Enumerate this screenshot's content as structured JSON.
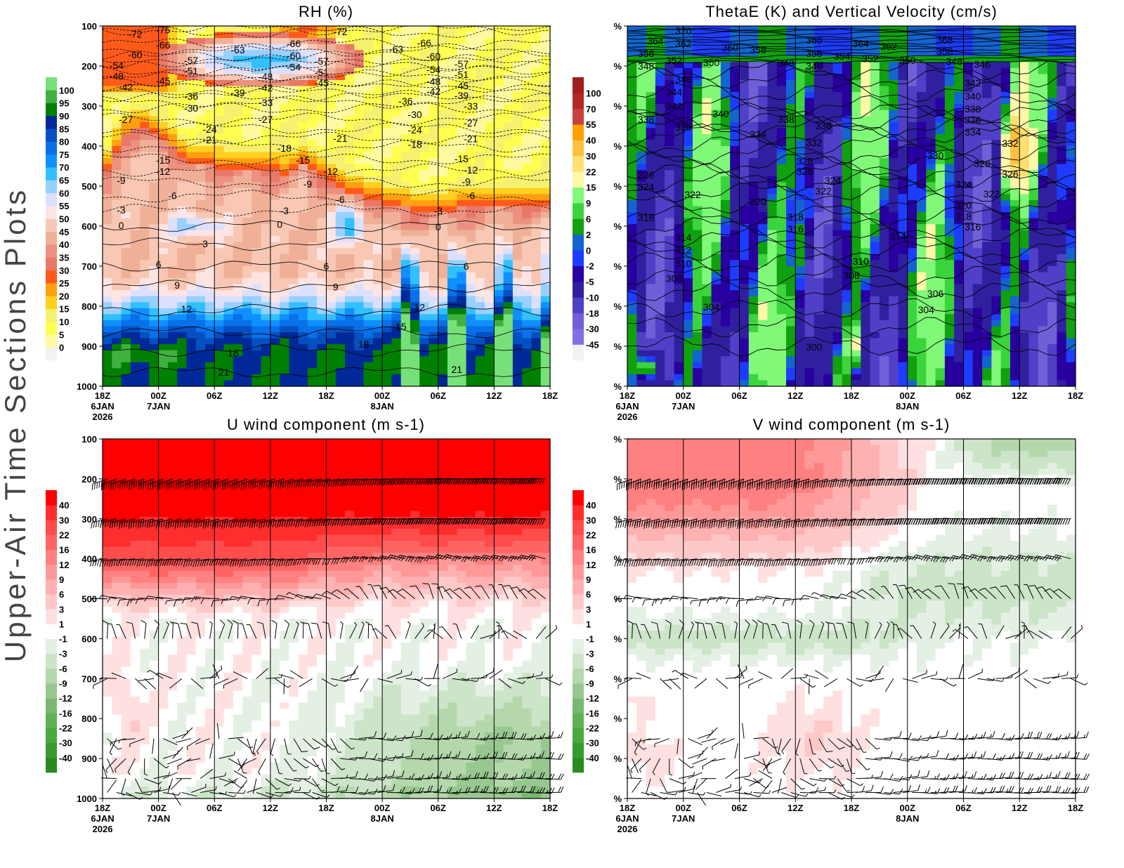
{
  "page_title": "Upper-Air Time Sections Plots",
  "chart_data": [
    {
      "type": "heatmap",
      "title": "RH (%)",
      "overlay": "temperature contours (labels)",
      "x_range": [
        "2026-01-06T18:00",
        "2026-01-08T18:00"
      ],
      "y_range": [
        100,
        1000
      ],
      "y_inverted": true,
      "y_ticks": [
        "100",
        "200",
        "300",
        "400",
        "500",
        "600",
        "700",
        "800",
        "900",
        "1000"
      ],
      "x_ticks": [
        {
          "time": "18Z",
          "date": "6JAN",
          "year": "2026"
        },
        {
          "time": "00Z",
          "date": "7JAN"
        },
        {
          "time": "06Z"
        },
        {
          "time": "12Z"
        },
        {
          "time": "18Z"
        },
        {
          "time": "00Z",
          "date": "8JAN"
        },
        {
          "time": "06Z"
        },
        {
          "time": "12Z"
        },
        {
          "time": "18Z"
        }
      ],
      "colorbar": {
        "levels": [
          0,
          5,
          10,
          15,
          20,
          25,
          30,
          35,
          40,
          45,
          50,
          55,
          60,
          65,
          70,
          75,
          80,
          85,
          90,
          95,
          100
        ],
        "colors": [
          "#f2f2f2",
          "#fffaa0",
          "#ffff50",
          "#f5f070",
          "#ffd020",
          "#ffa010",
          "#ff5a1a",
          "#e87868",
          "#ec9080",
          "#f0b098",
          "#f8c8b4",
          "#ffe4e4",
          "#dce0ff",
          "#98d0ff",
          "#30c0ff",
          "#1090ff",
          "#0870e8",
          "#0450c0",
          "#002898",
          "#008000",
          "#40b040",
          "#78e078"
        ]
      },
      "contour_labels": [
        [
          "2026-01-06T21:30",
          120,
          "-72"
        ],
        [
          "2026-01-07T00:30",
          110,
          "-75"
        ],
        [
          "2026-01-07T00:30",
          147,
          "-66"
        ],
        [
          "2026-01-06T21:30",
          172,
          "-60"
        ],
        [
          "2026-01-06T19:30",
          198,
          "-54"
        ],
        [
          "2026-01-07T03:30",
          186,
          "-57"
        ],
        [
          "2026-01-07T03:30",
          212,
          "-51"
        ],
        [
          "2026-01-06T19:30",
          225,
          "-48"
        ],
        [
          "2026-01-07T00:30",
          237,
          "-45"
        ],
        [
          "2026-01-06T20:30",
          253,
          "-42"
        ],
        [
          "2026-01-07T08:30",
          160,
          "-63"
        ],
        [
          "2026-01-07T14:30",
          144,
          "-66"
        ],
        [
          "2026-01-07T14:30",
          174,
          "-60"
        ],
        [
          "2026-01-07T14:30",
          203,
          "-54"
        ],
        [
          "2026-01-07T17:30",
          188,
          "-57"
        ],
        [
          "2026-01-07T17:30",
          216,
          "-51"
        ],
        [
          "2026-01-07T11:30",
          226,
          "-48"
        ],
        [
          "2026-01-07T11:30",
          254,
          "-42"
        ],
        [
          "2026-01-07T17:30",
          242,
          "-45"
        ],
        [
          "2026-01-07T08:30",
          267,
          "-39"
        ],
        [
          "2026-01-07T19:30",
          114,
          "-72"
        ],
        [
          "2026-01-08T01:30",
          158,
          "-63"
        ],
        [
          "2026-01-08T04:30",
          142,
          "-66"
        ],
        [
          "2026-01-08T05:30",
          175,
          "-60"
        ],
        [
          "2026-01-08T05:30",
          209,
          "-54"
        ],
        [
          "2026-01-08T08:30",
          195,
          "-57"
        ],
        [
          "2026-01-08T08:30",
          221,
          "-51"
        ],
        [
          "2026-01-08T05:30",
          239,
          "-48"
        ],
        [
          "2026-01-08T05:30",
          263,
          "-42"
        ],
        [
          "2026-01-08T08:30",
          249,
          "-45"
        ],
        [
          "2026-01-08T08:30",
          274,
          "-39"
        ],
        [
          "2026-01-08T09:30",
          300,
          "-33"
        ],
        [
          "2026-01-07T03:30",
          275,
          "-36"
        ],
        [
          "2026-01-07T03:30",
          305,
          "-30"
        ],
        [
          "2026-01-07T11:30",
          291,
          "-33"
        ],
        [
          "2026-01-07T11:30",
          333,
          "-27"
        ],
        [
          "2026-01-08T02:30",
          288,
          "-36"
        ],
        [
          "2026-01-08T03:30",
          321,
          "-30"
        ],
        [
          "2026-01-08T09:30",
          342,
          "-27"
        ],
        [
          "2026-01-08T03:30",
          360,
          "-24"
        ],
        [
          "2026-01-08T09:30",
          382,
          "-21"
        ],
        [
          "2026-01-08T03:30",
          396,
          "-18"
        ],
        [
          "2026-01-06T20:30",
          333,
          "-27"
        ],
        [
          "2026-01-07T05:30",
          358,
          "-24"
        ],
        [
          "2026-01-07T05:30",
          384,
          "-21"
        ],
        [
          "2026-01-07T13:30",
          405,
          "-18"
        ],
        [
          "2026-01-07T19:30",
          381,
          "-21"
        ],
        [
          "2026-01-07T15:30",
          435,
          "-15"
        ],
        [
          "2026-01-07T18:30",
          463,
          "-12"
        ],
        [
          "2026-01-07T16:00",
          495,
          "-9"
        ],
        [
          "2026-01-07T19:30",
          533,
          "-6"
        ],
        [
          "2026-01-07T00:30",
          435,
          "-15"
        ],
        [
          "2026-01-07T00:30",
          463,
          "-12"
        ],
        [
          "2026-01-06T20:00",
          486,
          "-9"
        ],
        [
          "2026-01-07T01:30",
          524,
          "-6"
        ],
        [
          "2026-01-06T20:00",
          560,
          "-3"
        ],
        [
          "2026-01-06T20:00",
          598,
          "0"
        ],
        [
          "2026-01-07T13:30",
          561,
          "-3"
        ],
        [
          "2026-01-07T13:00",
          596,
          "0"
        ],
        [
          "2026-01-08T08:30",
          432,
          "-15"
        ],
        [
          "2026-01-08T09:30",
          460,
          "-12"
        ],
        [
          "2026-01-08T09:00",
          489,
          "-9"
        ],
        [
          "2026-01-08T09:30",
          524,
          "-6"
        ],
        [
          "2026-01-08T06:00",
          561,
          "-3"
        ],
        [
          "2026-01-08T06:00",
          602,
          "0"
        ],
        [
          "2026-01-07T05:00",
          644,
          "3"
        ],
        [
          "2026-01-07T00:00",
          696,
          "6"
        ],
        [
          "2026-01-07T02:00",
          747,
          "9"
        ],
        [
          "2026-01-07T03:00",
          807,
          "12"
        ],
        [
          "2026-01-07T18:00",
          700,
          "6"
        ],
        [
          "2026-01-07T19:00",
          752,
          "9"
        ],
        [
          "2026-01-08T09:00",
          700,
          "6"
        ],
        [
          "2026-01-08T04:00",
          803,
          "12"
        ],
        [
          "2026-01-08T02:00",
          851,
          "15"
        ],
        [
          "2026-01-07T22:00",
          895,
          "18"
        ],
        [
          "2026-01-07T08:00",
          917,
          "18"
        ],
        [
          "2026-01-07T07:00",
          965,
          "21"
        ],
        [
          "2026-01-08T08:00",
          958,
          "21"
        ]
      ]
    },
    {
      "type": "heatmap",
      "title": "ThetaE (K) and Vertical Velocity (cm/s)",
      "x_range": [
        "2026-01-06T18:00",
        "2026-01-08T18:00"
      ],
      "y_range": [
        100,
        1000
      ],
      "y_inverted": true,
      "y_ticks": [
        "%",
        "%",
        "%",
        "%",
        "%",
        "%",
        "%",
        "%",
        "%",
        "%"
      ],
      "x_ticks": [
        {
          "time": "18Z",
          "date": "6JAN",
          "year": "2026"
        },
        {
          "time": "00Z",
          "date": "7JAN"
        },
        {
          "time": "06Z"
        },
        {
          "time": "12Z"
        },
        {
          "time": "18Z"
        },
        {
          "time": "00Z",
          "date": "8JAN"
        },
        {
          "time": "06Z"
        },
        {
          "time": "12Z"
        },
        {
          "time": "18Z"
        }
      ],
      "colorbar": {
        "levels": [
          -45,
          -30,
          -18,
          -10,
          -5,
          -2,
          0,
          2,
          6,
          9,
          15,
          22,
          30,
          40,
          55,
          70,
          100
        ],
        "colors": [
          "#f2f2f2",
          "#8070e8",
          "#7060d8",
          "#5040c8",
          "#3020a0",
          "#2800a0",
          "#1e3cff",
          "#1464d0",
          "#10a010",
          "#3cd43c",
          "#80f878",
          "#fff8a8",
          "#ffe070",
          "#ffc040",
          "#ffa000",
          "#c84040",
          "#b42828",
          "#a01e1e"
        ]
      },
      "contour_labels": [
        [
          "2026-01-07T00:00",
          112,
          "370"
        ],
        [
          "2026-01-06T21:00",
          137,
          "364"
        ],
        [
          "2026-01-07T00:00",
          144,
          "362"
        ],
        [
          "2026-01-07T05:00",
          154,
          "360"
        ],
        [
          "2026-01-07T08:00",
          160,
          "358"
        ],
        [
          "2026-01-06T20:00",
          168,
          "356"
        ],
        [
          "2026-01-06T23:00",
          186,
          "352"
        ],
        [
          "2026-01-07T03:00",
          191,
          "350"
        ],
        [
          "2026-01-06T20:00",
          200,
          "348"
        ],
        [
          "2026-01-07T14:00",
          135,
          "366"
        ],
        [
          "2026-01-07T14:00",
          168,
          "356"
        ],
        [
          "2026-01-07T17:00",
          175,
          "354"
        ],
        [
          "2026-01-07T19:00",
          144,
          "364"
        ],
        [
          "2026-01-07T22:00",
          151,
          "362"
        ],
        [
          "2026-01-07T20:00",
          182,
          "352"
        ],
        [
          "2026-01-08T00:00",
          186,
          "350"
        ],
        [
          "2026-01-07T11:00",
          193,
          "348"
        ],
        [
          "2026-01-07T14:00",
          200,
          "346"
        ],
        [
          "2026-01-08T04:00",
          135,
          "368"
        ],
        [
          "2026-01-08T04:00",
          163,
          "358"
        ],
        [
          "2026-01-08T05:00",
          189,
          "348"
        ],
        [
          "2026-01-08T08:00",
          196,
          "346"
        ],
        [
          "2026-01-07T00:00",
          233,
          "346"
        ],
        [
          "2026-01-06T23:00",
          265,
          "344"
        ],
        [
          "2026-01-06T23:00",
          300,
          "342"
        ],
        [
          "2026-01-06T20:00",
          333,
          "338"
        ],
        [
          "2026-01-07T00:00",
          353,
          "336"
        ],
        [
          "2026-01-07T04:00",
          319,
          "340"
        ],
        [
          "2026-01-07T08:00",
          370,
          "334"
        ],
        [
          "2026-01-07T11:00",
          333,
          "338"
        ],
        [
          "2026-01-07T15:00",
          349,
          "336"
        ],
        [
          "2026-01-07T14:00",
          391,
          "332"
        ],
        [
          "2026-01-08T03:00",
          424,
          "330"
        ],
        [
          "2026-01-08T07:00",
          242,
          "342"
        ],
        [
          "2026-01-08T07:00",
          275,
          "340"
        ],
        [
          "2026-01-08T07:00",
          307,
          "338"
        ],
        [
          "2026-01-08T07:00",
          335,
          "336"
        ],
        [
          "2026-01-08T07:00",
          365,
          "334"
        ],
        [
          "2026-01-08T11:00",
          393,
          "332"
        ],
        [
          "2026-01-07T13:00",
          438,
          "328"
        ],
        [
          "2026-01-07T13:00",
          463,
          "326"
        ],
        [
          "2026-01-07T16:00",
          486,
          "324"
        ],
        [
          "2026-01-07T15:00",
          512,
          "322"
        ],
        [
          "2026-01-08T08:00",
          444,
          "328"
        ],
        [
          "2026-01-08T11:00",
          470,
          "326"
        ],
        [
          "2026-01-08T06:00",
          496,
          "324"
        ],
        [
          "2026-01-08T09:00",
          519,
          "322"
        ],
        [
          "2026-01-06T20:00",
          472,
          "326"
        ],
        [
          "2026-01-06T20:00",
          502,
          "324"
        ],
        [
          "2026-01-07T01:00",
          521,
          "322"
        ],
        [
          "2026-01-07T08:00",
          539,
          "320"
        ],
        [
          "2026-01-07T12:00",
          577,
          "318"
        ],
        [
          "2026-01-07T12:00",
          607,
          "316"
        ],
        [
          "2026-01-08T06:00",
          547,
          "320"
        ],
        [
          "2026-01-08T06:00",
          575,
          "318"
        ],
        [
          "2026-01-08T07:00",
          602,
          "316"
        ],
        [
          "2026-01-06T20:00",
          579,
          "318"
        ],
        [
          "2026-01-07T00:00",
          628,
          "314"
        ],
        [
          "2026-01-07T00:00",
          660,
          "312"
        ],
        [
          "2026-01-07T00:00",
          693,
          "310"
        ],
        [
          "2026-01-06T23:00",
          731,
          "308"
        ],
        [
          "2026-01-07T23:00",
          625,
          "314"
        ],
        [
          "2026-01-07T19:00",
          688,
          "310"
        ],
        [
          "2026-01-07T18:00",
          723,
          "308"
        ],
        [
          "2026-01-08T03:00",
          768,
          "306"
        ],
        [
          "2026-01-07T03:00",
          802,
          "304"
        ],
        [
          "2026-01-08T02:00",
          809,
          "304"
        ],
        [
          "2026-01-07T14:00",
          902,
          "300"
        ]
      ]
    },
    {
      "type": "heatmap",
      "title": "U wind component (m s-1)",
      "overlay": "wind barbs",
      "barb_levels": [
        200,
        300,
        400,
        500,
        600,
        700,
        850,
        900,
        950,
        985
      ],
      "x_range": [
        "2026-01-06T18:00",
        "2026-01-08T18:00"
      ],
      "y_range": [
        100,
        1000
      ],
      "y_inverted": true,
      "y_ticks": [
        "100",
        "200",
        "300",
        "400",
        "500",
        "600",
        "700",
        "800",
        "900",
        "1000"
      ],
      "x_ticks": [
        {
          "time": "18Z",
          "date": "6JAN",
          "year": "2026"
        },
        {
          "time": "00Z",
          "date": "7JAN"
        },
        {
          "time": "06Z"
        },
        {
          "time": "12Z"
        },
        {
          "time": "18Z"
        },
        {
          "time": "00Z",
          "date": "8JAN"
        },
        {
          "time": "06Z"
        },
        {
          "time": "12Z"
        },
        {
          "time": "18Z"
        }
      ],
      "colorbar": {
        "levels": [
          -40,
          -30,
          -22,
          -16,
          -12,
          -9,
          -6,
          -3,
          -1,
          1,
          3,
          6,
          9,
          12,
          16,
          22,
          30,
          40
        ],
        "colors": [
          "#2a8a20",
          "#389a30",
          "#4aa840",
          "#60b058",
          "#78b870",
          "#98c890",
          "#b4d8ac",
          "#cce4c8",
          "#e4f0e4",
          "#ffffff",
          "#ffe0e0",
          "#ffc8c8",
          "#ffb0b0",
          "#ff9898",
          "#ff8080",
          "#ff6464",
          "#ff4c4c",
          "#ff2e2e",
          "#ff0000"
        ]
      }
    },
    {
      "type": "heatmap",
      "title": "V wind component (m s-1)",
      "overlay": "wind barbs",
      "barb_levels": [
        200,
        300,
        400,
        500,
        600,
        700,
        850,
        900,
        950,
        985
      ],
      "x_range": [
        "2026-01-06T18:00",
        "2026-01-08T18:00"
      ],
      "y_range": [
        100,
        1000
      ],
      "y_inverted": true,
      "y_ticks": [
        "%",
        "%",
        "%",
        "%",
        "%",
        "%",
        "%",
        "%",
        "%",
        "%"
      ],
      "x_ticks": [
        {
          "time": "18Z",
          "date": "6JAN",
          "year": "2026"
        },
        {
          "time": "00Z",
          "date": "7JAN"
        },
        {
          "time": "06Z"
        },
        {
          "time": "12Z"
        },
        {
          "time": "18Z"
        },
        {
          "time": "00Z",
          "date": "8JAN"
        },
        {
          "time": "06Z"
        },
        {
          "time": "12Z"
        },
        {
          "time": "18Z"
        }
      ],
      "colorbar": {
        "levels": [
          -40,
          -30,
          -22,
          -16,
          -12,
          -9,
          -6,
          -3,
          -1,
          1,
          3,
          6,
          9,
          12,
          16,
          22,
          30,
          40
        ],
        "colors": [
          "#2a8a20",
          "#389a30",
          "#4aa840",
          "#60b058",
          "#78b870",
          "#98c890",
          "#b4d8ac",
          "#cce4c8",
          "#e4f0e4",
          "#ffffff",
          "#ffe0e0",
          "#ffc8c8",
          "#ffb0b0",
          "#ff9898",
          "#ff8080",
          "#ff6464",
          "#ff4c4c",
          "#ff2e2e",
          "#ff0000"
        ]
      }
    }
  ]
}
